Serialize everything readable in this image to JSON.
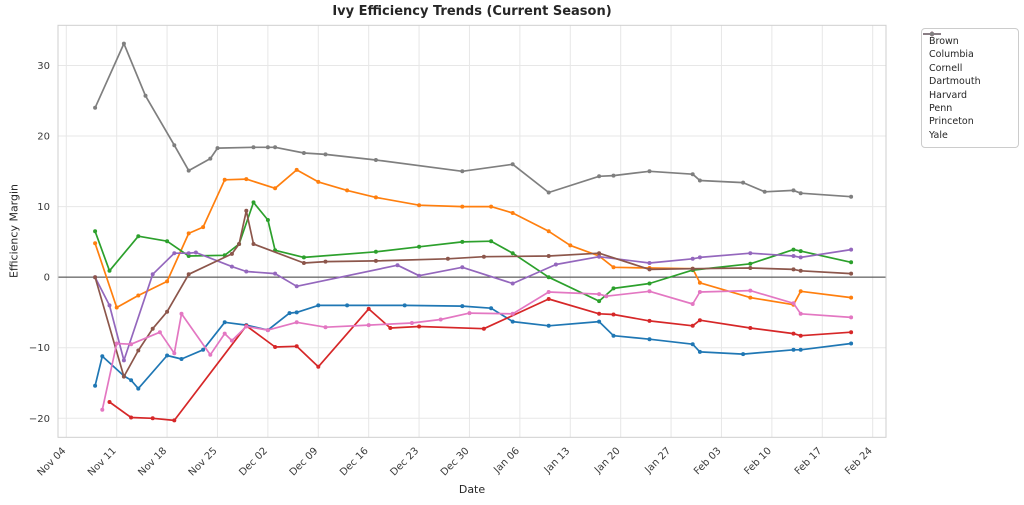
{
  "chart_data": {
    "type": "line",
    "title": "Ivy Efficiency Trends (Current Season)",
    "xlabel": "Date",
    "ylabel": "Efficiency Margin",
    "x_unit": "days since Nov 04",
    "xlim_days": [
      -1.15,
      113.85
    ],
    "ylim": [
      -22.7,
      35.7
    ],
    "grid": true,
    "legend_position": "outside upper right",
    "x_ticks": [
      {
        "day": 0,
        "label": "Nov 04"
      },
      {
        "day": 7,
        "label": "Nov 11"
      },
      {
        "day": 14,
        "label": "Nov 18"
      },
      {
        "day": 21,
        "label": "Nov 25"
      },
      {
        "day": 28,
        "label": "Dec 02"
      },
      {
        "day": 35,
        "label": "Dec 09"
      },
      {
        "day": 42,
        "label": "Dec 16"
      },
      {
        "day": 49,
        "label": "Dec 23"
      },
      {
        "day": 56,
        "label": "Dec 30"
      },
      {
        "day": 63,
        "label": "Jan 06"
      },
      {
        "day": 70,
        "label": "Jan 13"
      },
      {
        "day": 77,
        "label": "Jan 20"
      },
      {
        "day": 84,
        "label": "Jan 27"
      },
      {
        "day": 91,
        "label": "Feb 03"
      },
      {
        "day": 98,
        "label": "Feb 10"
      },
      {
        "day": 105,
        "label": "Feb 17"
      },
      {
        "day": 112,
        "label": "Feb 24"
      }
    ],
    "y_ticks": [
      {
        "value": 30,
        "label": "30"
      },
      {
        "value": 20,
        "label": "20"
      },
      {
        "value": 10,
        "label": "10"
      },
      {
        "value": 0,
        "label": "0"
      },
      {
        "value": -10,
        "label": "−10"
      },
      {
        "value": -20,
        "label": "−20"
      }
    ],
    "series": [
      {
        "name": "Brown",
        "color": "#1f77b4",
        "points": [
          [
            4,
            -15.4
          ],
          [
            5,
            -11.2
          ],
          [
            8,
            -14.0
          ],
          [
            9,
            -14.6
          ],
          [
            10,
            -15.8
          ],
          [
            14,
            -11.1
          ],
          [
            16,
            -11.6
          ],
          [
            19,
            -10.3
          ],
          [
            22,
            -6.4
          ],
          [
            25,
            -6.8
          ],
          [
            28,
            -7.5
          ],
          [
            31,
            -5.1
          ],
          [
            32,
            -5.0
          ],
          [
            35,
            -4.0
          ],
          [
            39,
            -4.0
          ],
          [
            47,
            -4.0
          ],
          [
            55,
            -4.1
          ],
          [
            59,
            -4.4
          ],
          [
            62,
            -6.3
          ],
          [
            67,
            -6.9
          ],
          [
            74,
            -6.3
          ],
          [
            76,
            -8.3
          ],
          [
            81,
            -8.8
          ],
          [
            87,
            -9.5
          ],
          [
            88,
            -10.6
          ],
          [
            94,
            -10.9
          ],
          [
            101,
            -10.3
          ],
          [
            102,
            -10.3
          ],
          [
            109,
            -9.4
          ]
        ]
      },
      {
        "name": "Columbia",
        "color": "#ff7f0e",
        "points": [
          [
            4,
            4.8
          ],
          [
            7,
            -4.3
          ],
          [
            10,
            -2.6
          ],
          [
            14,
            -0.6
          ],
          [
            17,
            6.2
          ],
          [
            19,
            7.1
          ],
          [
            22,
            13.8
          ],
          [
            25,
            13.9
          ],
          [
            29,
            12.6
          ],
          [
            32,
            15.2
          ],
          [
            35,
            13.5
          ],
          [
            39,
            12.3
          ],
          [
            43,
            11.3
          ],
          [
            49,
            10.2
          ],
          [
            55,
            10.0
          ],
          [
            59,
            10.0
          ],
          [
            62,
            9.1
          ],
          [
            67,
            6.5
          ],
          [
            70,
            4.5
          ],
          [
            74,
            3.0
          ],
          [
            76,
            1.4
          ],
          [
            81,
            1.3
          ],
          [
            87,
            1.2
          ],
          [
            88,
            -0.8
          ],
          [
            95,
            -2.9
          ],
          [
            101,
            -3.9
          ],
          [
            102,
            -2.0
          ],
          [
            109,
            -2.9
          ]
        ]
      },
      {
        "name": "Cornell",
        "color": "#2ca02c",
        "points": [
          [
            4,
            6.5
          ],
          [
            6,
            0.9
          ],
          [
            10,
            5.8
          ],
          [
            14,
            5.1
          ],
          [
            17,
            3.0
          ],
          [
            22,
            3.1
          ],
          [
            24,
            4.7
          ],
          [
            26,
            10.6
          ],
          [
            28,
            8.1
          ],
          [
            29,
            3.8
          ],
          [
            33,
            2.8
          ],
          [
            43,
            3.6
          ],
          [
            49,
            4.3
          ],
          [
            55,
            5.0
          ],
          [
            59,
            5.1
          ],
          [
            62,
            3.4
          ],
          [
            67,
            0.0
          ],
          [
            74,
            -3.4
          ],
          [
            76,
            -1.6
          ],
          [
            81,
            -0.9
          ],
          [
            87,
            1.0
          ],
          [
            95,
            1.9
          ],
          [
            101,
            3.9
          ],
          [
            102,
            3.7
          ],
          [
            109,
            2.1
          ]
        ]
      },
      {
        "name": "Dartmouth",
        "color": "#d62728",
        "points": [
          [
            6,
            -17.7
          ],
          [
            9,
            -19.9
          ],
          [
            12,
            -20.0
          ],
          [
            15,
            -20.3
          ],
          [
            25,
            -6.9
          ],
          [
            29,
            -9.9
          ],
          [
            32,
            -9.8
          ],
          [
            35,
            -12.7
          ],
          [
            42,
            -4.5
          ],
          [
            45,
            -7.2
          ],
          [
            49,
            -7.0
          ],
          [
            58,
            -7.3
          ],
          [
            67,
            -3.1
          ],
          [
            74,
            -5.2
          ],
          [
            76,
            -5.3
          ],
          [
            81,
            -6.2
          ],
          [
            87,
            -6.9
          ],
          [
            88,
            -6.1
          ],
          [
            95,
            -7.2
          ],
          [
            101,
            -8.0
          ],
          [
            102,
            -8.3
          ],
          [
            109,
            -7.8
          ]
        ]
      },
      {
        "name": "Harvard",
        "color": "#9467bd",
        "points": [
          [
            4,
            0.0
          ],
          [
            6,
            -4.0
          ],
          [
            8,
            -11.8
          ],
          [
            12,
            0.4
          ],
          [
            15,
            3.4
          ],
          [
            17,
            3.4
          ],
          [
            18,
            3.5
          ],
          [
            23,
            1.5
          ],
          [
            25,
            0.8
          ],
          [
            29,
            0.5
          ],
          [
            32,
            -1.3
          ],
          [
            46,
            1.7
          ],
          [
            49,
            0.2
          ],
          [
            55,
            1.4
          ],
          [
            62,
            -0.9
          ],
          [
            68,
            1.8
          ],
          [
            74,
            2.9
          ],
          [
            81,
            2.0
          ],
          [
            87,
            2.6
          ],
          [
            88,
            2.8
          ],
          [
            95,
            3.4
          ],
          [
            101,
            3.0
          ],
          [
            102,
            2.8
          ],
          [
            109,
            3.9
          ]
        ]
      },
      {
        "name": "Penn",
        "color": "#8c564b",
        "points": [
          [
            4,
            0.0
          ],
          [
            8,
            -14.1
          ],
          [
            10,
            -10.4
          ],
          [
            12,
            -7.3
          ],
          [
            14,
            -4.9
          ],
          [
            17,
            0.4
          ],
          [
            23,
            3.3
          ],
          [
            24,
            4.7
          ],
          [
            25,
            9.4
          ],
          [
            26,
            4.7
          ],
          [
            33,
            2.0
          ],
          [
            36,
            2.2
          ],
          [
            43,
            2.3
          ],
          [
            53,
            2.6
          ],
          [
            58,
            2.9
          ],
          [
            67,
            3.0
          ],
          [
            74,
            3.4
          ],
          [
            81,
            1.1
          ],
          [
            87,
            1.2
          ],
          [
            95,
            1.3
          ],
          [
            101,
            1.1
          ],
          [
            102,
            0.9
          ],
          [
            109,
            0.5
          ]
        ]
      },
      {
        "name": "Princeton",
        "color": "#e377c2",
        "points": [
          [
            5,
            -18.8
          ],
          [
            7,
            -9.4
          ],
          [
            9,
            -9.5
          ],
          [
            13,
            -7.8
          ],
          [
            15,
            -10.8
          ],
          [
            16,
            -5.2
          ],
          [
            20,
            -11.0
          ],
          [
            22,
            -8.0
          ],
          [
            23,
            -9.0
          ],
          [
            25,
            -7.0
          ],
          [
            28,
            -7.5
          ],
          [
            32,
            -6.4
          ],
          [
            36,
            -7.1
          ],
          [
            42,
            -6.8
          ],
          [
            48,
            -6.5
          ],
          [
            52,
            -6.0
          ],
          [
            56,
            -5.1
          ],
          [
            62,
            -5.2
          ],
          [
            67,
            -2.1
          ],
          [
            74,
            -2.4
          ],
          [
            75,
            -2.7
          ],
          [
            81,
            -2.0
          ],
          [
            87,
            -3.8
          ],
          [
            88,
            -2.1
          ],
          [
            95,
            -1.9
          ],
          [
            101,
            -3.7
          ],
          [
            102,
            -5.2
          ],
          [
            109,
            -5.7
          ]
        ]
      },
      {
        "name": "Yale",
        "color": "#7f7f7f",
        "points": [
          [
            4,
            24.0
          ],
          [
            8,
            33.1
          ],
          [
            11,
            25.7
          ],
          [
            15,
            18.7
          ],
          [
            17,
            15.1
          ],
          [
            20,
            16.8
          ],
          [
            21,
            18.3
          ],
          [
            26,
            18.4
          ],
          [
            28,
            18.4
          ],
          [
            29,
            18.4
          ],
          [
            33,
            17.6
          ],
          [
            36,
            17.4
          ],
          [
            43,
            16.6
          ],
          [
            55,
            15.0
          ],
          [
            62,
            16.0
          ],
          [
            67,
            12.0
          ],
          [
            74,
            14.3
          ],
          [
            76,
            14.4
          ],
          [
            81,
            15.0
          ],
          [
            87,
            14.6
          ],
          [
            88,
            13.7
          ],
          [
            94,
            13.4
          ],
          [
            97,
            12.1
          ],
          [
            101,
            12.3
          ],
          [
            102,
            11.9
          ],
          [
            109,
            11.4
          ]
        ]
      }
    ]
  }
}
